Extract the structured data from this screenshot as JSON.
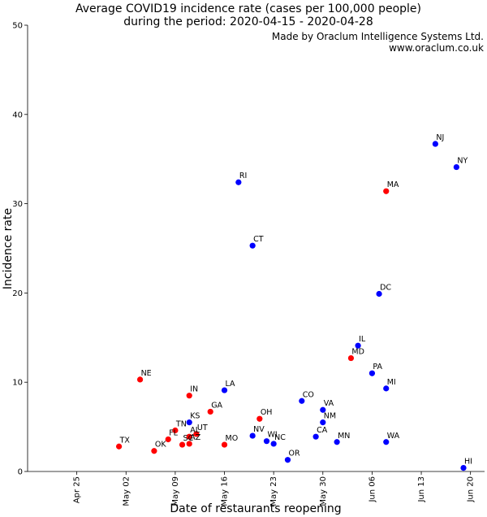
{
  "chart_data": {
    "type": "scatter",
    "title_lines": [
      "Average COVID19 incidence rate (cases per 100,000 people)",
      "during the period: 2020-04-15 - 2020-04-28"
    ],
    "credit_lines": [
      "Made by Oraclum Intelligence Systems Ltd.",
      "www.oraclum.co.uk"
    ],
    "xlabel": "Date of restaurants reopening",
    "ylabel": "Incidence rate",
    "xlim": [
      "2020-04-18",
      "2020-06-22"
    ],
    "ylim": [
      0,
      50
    ],
    "yticks": [
      0,
      10,
      20,
      30,
      40,
      50
    ],
    "xticks": [
      {
        "date": "2020-04-25",
        "label": "Apr 25"
      },
      {
        "date": "2020-05-02",
        "label": "May 02"
      },
      {
        "date": "2020-05-09",
        "label": "May 09"
      },
      {
        "date": "2020-05-16",
        "label": "May 16"
      },
      {
        "date": "2020-05-23",
        "label": "May 23"
      },
      {
        "date": "2020-05-30",
        "label": "May 30"
      },
      {
        "date": "2020-06-06",
        "label": "Jun 06"
      },
      {
        "date": "2020-06-13",
        "label": "Jun 13"
      },
      {
        "date": "2020-06-20",
        "label": "Jun 20"
      }
    ],
    "colors": {
      "blue": "#0000ff",
      "red": "#ff0000"
    },
    "points": [
      {
        "state": "TX",
        "date": "2020-05-01",
        "value": 2.8,
        "color": "red"
      },
      {
        "state": "NE",
        "date": "2020-05-04",
        "value": 10.3,
        "color": "red"
      },
      {
        "state": "OK",
        "date": "2020-05-06",
        "value": 2.3,
        "color": "red"
      },
      {
        "state": "FL",
        "date": "2020-05-08",
        "value": 3.6,
        "color": "red"
      },
      {
        "state": "TN",
        "date": "2020-05-09",
        "value": 4.6,
        "color": "red"
      },
      {
        "state": "SC",
        "date": "2020-05-10",
        "value": 3.0,
        "color": "red"
      },
      {
        "state": "AZ",
        "date": "2020-05-11",
        "value": 3.1,
        "color": "red"
      },
      {
        "state": "AL",
        "date": "2020-05-11",
        "value": 3.9,
        "color": "red"
      },
      {
        "state": "IN",
        "date": "2020-05-11",
        "value": 8.5,
        "color": "red"
      },
      {
        "state": "KS",
        "date": "2020-05-11",
        "value": 5.5,
        "color": "blue"
      },
      {
        "state": "UT",
        "date": "2020-05-12",
        "value": 4.2,
        "color": "red"
      },
      {
        "state": "GA",
        "date": "2020-05-14",
        "value": 6.7,
        "color": "red"
      },
      {
        "state": "MO",
        "date": "2020-05-16",
        "value": 3.0,
        "color": "red"
      },
      {
        "state": "LA",
        "date": "2020-05-16",
        "value": 9.1,
        "color": "blue"
      },
      {
        "state": "RI",
        "date": "2020-05-18",
        "value": 32.4,
        "color": "blue"
      },
      {
        "state": "CT",
        "date": "2020-05-20",
        "value": 25.3,
        "color": "blue"
      },
      {
        "state": "NV",
        "date": "2020-05-20",
        "value": 4.0,
        "color": "blue"
      },
      {
        "state": "OH",
        "date": "2020-05-21",
        "value": 5.9,
        "color": "red"
      },
      {
        "state": "WI",
        "date": "2020-05-22",
        "value": 3.4,
        "color": "blue"
      },
      {
        "state": "NC",
        "date": "2020-05-23",
        "value": 3.1,
        "color": "blue"
      },
      {
        "state": "OR",
        "date": "2020-05-25",
        "value": 1.3,
        "color": "blue"
      },
      {
        "state": "CO",
        "date": "2020-05-27",
        "value": 7.9,
        "color": "blue"
      },
      {
        "state": "CA",
        "date": "2020-05-29",
        "value": 3.9,
        "color": "blue"
      },
      {
        "state": "VA",
        "date": "2020-05-30",
        "value": 6.9,
        "color": "blue"
      },
      {
        "state": "NM",
        "date": "2020-05-30",
        "value": 5.5,
        "color": "blue"
      },
      {
        "state": "MN",
        "date": "2020-06-01",
        "value": 3.3,
        "color": "blue"
      },
      {
        "state": "MD",
        "date": "2020-06-03",
        "value": 12.7,
        "color": "red"
      },
      {
        "state": "IL",
        "date": "2020-06-04",
        "value": 14.1,
        "color": "blue"
      },
      {
        "state": "PA",
        "date": "2020-06-06",
        "value": 11.0,
        "color": "blue"
      },
      {
        "state": "DC",
        "date": "2020-06-07",
        "value": 19.9,
        "color": "blue"
      },
      {
        "state": "MA",
        "date": "2020-06-08",
        "value": 31.4,
        "color": "red"
      },
      {
        "state": "MI",
        "date": "2020-06-08",
        "value": 9.3,
        "color": "blue"
      },
      {
        "state": "WA",
        "date": "2020-06-08",
        "value": 3.3,
        "color": "blue"
      },
      {
        "state": "NJ",
        "date": "2020-06-15",
        "value": 36.7,
        "color": "blue"
      },
      {
        "state": "NY",
        "date": "2020-06-18",
        "value": 34.1,
        "color": "blue"
      },
      {
        "state": "HI",
        "date": "2020-06-19",
        "value": 0.4,
        "color": "blue"
      }
    ]
  }
}
